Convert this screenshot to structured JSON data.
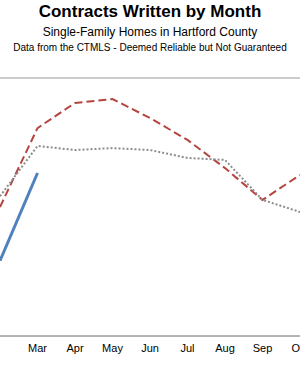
{
  "chart_data": {
    "type": "line",
    "title": "Contracts Written by Month",
    "subtitle": "Single-Family Homes in Hartford County",
    "note": "Data from the CTMLS - Deemed Reliable but Not Guaranteed",
    "categories": [
      null,
      "Mar",
      "Apr",
      "May",
      "Jun",
      "Jul",
      "Aug",
      "Sep",
      "Oct"
    ],
    "series": [
      {
        "color": "#4f81bd",
        "line_style": "solid",
        "values": [
          350,
          758,
          null,
          null,
          null,
          null,
          null,
          null,
          null
        ]
      },
      {
        "color": "#b5453f",
        "line_style": "dashed",
        "values": [
          600,
          967,
          1084,
          1102,
          1014,
          912,
          781,
          633,
          749
        ]
      },
      {
        "color": "#8c8c8c",
        "line_style": "dotted",
        "values": [
          650,
          884,
          865,
          874,
          865,
          828,
          819,
          633,
          577
        ]
      }
    ],
    "ylim": [
      0,
      1200
    ],
    "yticks": [
      0,
      200,
      400,
      600,
      800,
      1000,
      1200
    ],
    "grid": true,
    "tick_labels": "x"
  }
}
